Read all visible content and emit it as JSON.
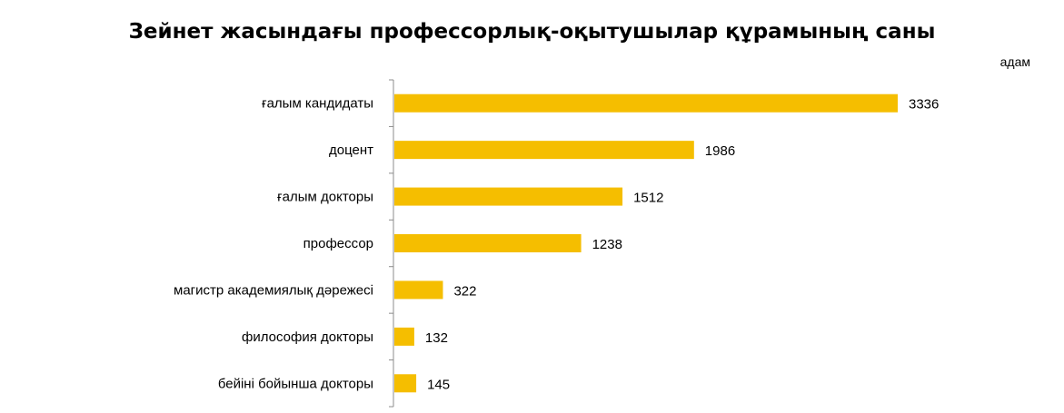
{
  "chart_data": {
    "type": "bar",
    "orientation": "horizontal",
    "title": "Зейнет жасындағы профессорлық-оқытушылар құрамының саны",
    "unit": "адам",
    "categories": [
      "ғалым кандидаты",
      "доцент",
      "ғалым докторы",
      "профессор",
      "магистр академиялық дәрежесі",
      "философия докторы",
      "бейіні бойынша докторы"
    ],
    "values": [
      3336,
      1986,
      1512,
      1238,
      322,
      132,
      145
    ],
    "bar_color": "#F5BE00",
    "axis_color": "#8C8C8C",
    "xlim": [
      0,
      3336
    ],
    "grid": false,
    "legend": "none"
  }
}
